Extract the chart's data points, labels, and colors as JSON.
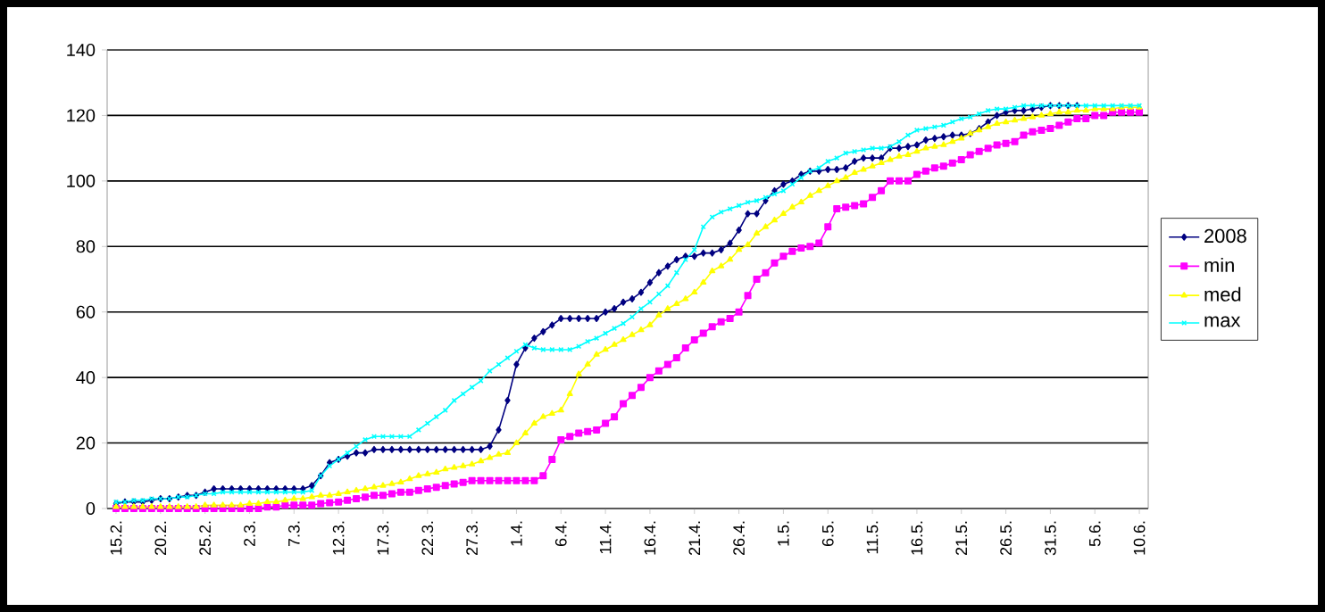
{
  "chart_data": {
    "type": "line",
    "categories": [
      "15.2.",
      null,
      null,
      null,
      null,
      "20.2.",
      null,
      null,
      null,
      null,
      "25.2.",
      null,
      null,
      null,
      null,
      "2.3.",
      null,
      null,
      null,
      null,
      "7.3.",
      null,
      null,
      null,
      null,
      "12.3.",
      null,
      null,
      null,
      null,
      "17.3.",
      null,
      null,
      null,
      null,
      "22.3.",
      null,
      null,
      null,
      null,
      "27.3.",
      null,
      null,
      null,
      null,
      "1.4.",
      null,
      null,
      null,
      null,
      "6.4.",
      null,
      null,
      null,
      null,
      "11.4.",
      null,
      null,
      null,
      null,
      "16.4.",
      null,
      null,
      null,
      null,
      "21.4.",
      null,
      null,
      null,
      null,
      "26.4.",
      null,
      null,
      null,
      null,
      "1.5.",
      null,
      null,
      null,
      null,
      "6.5.",
      null,
      null,
      null,
      null,
      "11.5.",
      null,
      null,
      null,
      null,
      "16.5.",
      null,
      null,
      null,
      null,
      "21.5.",
      null,
      null,
      null,
      null,
      "26.5.",
      null,
      null,
      null,
      null,
      "31.5.",
      null,
      null,
      null,
      null,
      "5.6.",
      null,
      null,
      null,
      null,
      "10.6."
    ],
    "series": [
      {
        "name": "2008",
        "color": "#000080",
        "marker": "diamond",
        "values": [
          1.5,
          2,
          2,
          2,
          2.5,
          3,
          3,
          3.5,
          4,
          4,
          5,
          6,
          6,
          6,
          6,
          6,
          6,
          6,
          6,
          6,
          6,
          6,
          7,
          10,
          14,
          15,
          16,
          17,
          17,
          18,
          18,
          18,
          18,
          18,
          18,
          18,
          18,
          18,
          18,
          18,
          18,
          18,
          19,
          24,
          33,
          44,
          49,
          52,
          54,
          56,
          58,
          58,
          58,
          58,
          58,
          60,
          61,
          63,
          64,
          66,
          69,
          72,
          74,
          76,
          77,
          77,
          78,
          78,
          79,
          81,
          85,
          90,
          90,
          94,
          97,
          99,
          100,
          102,
          103,
          103,
          103.5,
          103.5,
          104,
          106,
          107,
          107,
          107,
          110,
          110,
          110.5,
          111,
          112.5,
          113,
          113.5,
          114,
          114,
          114.5,
          116,
          118,
          120,
          121,
          121.5,
          121.5,
          122,
          122.5,
          123,
          123,
          123,
          123,
          null,
          null,
          null,
          null,
          null,
          null,
          null
        ]
      },
      {
        "name": "min",
        "color": "#ff00ff",
        "marker": "square",
        "values": [
          0,
          0,
          0,
          0,
          0,
          0,
          0,
          0,
          0,
          0,
          0,
          0,
          0,
          0,
          0,
          0,
          0,
          0.5,
          0.5,
          1,
          1,
          1,
          1,
          1.5,
          1.8,
          2,
          2.5,
          3,
          3.5,
          4,
          4,
          4.5,
          5,
          5,
          5.5,
          6,
          6.5,
          7,
          7.5,
          8,
          8.5,
          8.5,
          8.5,
          8.5,
          8.5,
          8.5,
          8.5,
          8.5,
          10,
          15,
          21,
          22,
          23,
          23.5,
          24,
          26,
          28,
          32,
          34.5,
          37,
          40,
          42,
          44,
          46,
          49,
          51.5,
          53.5,
          55.5,
          57,
          58,
          60,
          65,
          70,
          72,
          75,
          77,
          78.5,
          79.5,
          80,
          81,
          86,
          91.5,
          92,
          92.5,
          93,
          95,
          97,
          100,
          100,
          100,
          102,
          103,
          104,
          104.5,
          105.5,
          106.5,
          108,
          109,
          110,
          111,
          111.5,
          112,
          114,
          115,
          115.5,
          116,
          117,
          118,
          119,
          119,
          120,
          120,
          121,
          121,
          121,
          121
        ]
      },
      {
        "name": "med",
        "color": "#ffff00",
        "marker": "triangle",
        "values": [
          0.5,
          0.5,
          0.5,
          0.5,
          0.5,
          0.5,
          0.5,
          0.5,
          0.5,
          0.5,
          1,
          1,
          1,
          1,
          1,
          1.5,
          1.5,
          2,
          2,
          2.5,
          3,
          3,
          3.5,
          4,
          4,
          4.5,
          5,
          5.5,
          6,
          6.5,
          7,
          7.5,
          8,
          9,
          10,
          10.5,
          11,
          12,
          12.5,
          13,
          13.5,
          14.5,
          15.5,
          16.5,
          17,
          20,
          23,
          26,
          28,
          29,
          30,
          35,
          41,
          44,
          47,
          48.5,
          50,
          51.5,
          53,
          54.5,
          56,
          59,
          61,
          62.5,
          64,
          66,
          69,
          72.5,
          74,
          76,
          79,
          80.5,
          84,
          86,
          88,
          90,
          92,
          93.5,
          95.5,
          97,
          98.5,
          100,
          101,
          102.5,
          103.5,
          104.5,
          105.5,
          106.5,
          107.5,
          108,
          109,
          110,
          110.5,
          111,
          112,
          113,
          114.5,
          115.5,
          116.5,
          117.5,
          118,
          118.5,
          119,
          119.5,
          120,
          120.5,
          121,
          121,
          121.5,
          121.5,
          122,
          122,
          122,
          122.5,
          122.5,
          122.5
        ]
      },
      {
        "name": "max",
        "color": "#00ffff",
        "marker": "cross",
        "values": [
          2,
          2,
          2.5,
          2.5,
          3,
          3,
          3,
          3.5,
          3.5,
          4,
          4.5,
          4.5,
          5,
          5,
          5,
          5,
          5,
          5,
          5,
          5,
          5,
          5,
          5.5,
          10,
          13,
          15,
          17,
          19,
          21,
          22,
          22,
          22,
          22,
          22,
          24,
          26,
          28,
          30,
          33,
          35,
          37,
          39,
          42,
          44,
          46,
          48,
          50,
          49,
          48.5,
          48.5,
          48.5,
          48.5,
          49.5,
          51,
          52,
          53.5,
          55,
          56.5,
          58.5,
          61,
          63,
          65.5,
          68,
          72,
          76,
          79,
          86,
          89,
          90.5,
          91.5,
          92.5,
          93.5,
          94,
          95,
          96,
          97,
          99,
          101,
          103,
          104,
          106,
          107,
          108.5,
          109,
          109.5,
          110,
          110,
          110.5,
          112,
          114,
          115.5,
          116,
          116.5,
          117,
          118,
          119,
          119.5,
          120.5,
          121.5,
          122,
          122,
          122.5,
          123,
          123,
          123,
          123,
          123,
          123,
          123,
          123,
          123,
          123,
          123,
          123,
          123,
          123
        ]
      }
    ],
    "ylim": [
      0,
      140
    ],
    "yticks": [
      0,
      20,
      40,
      60,
      80,
      100,
      120,
      140
    ],
    "grid": "y",
    "legend": "right"
  }
}
